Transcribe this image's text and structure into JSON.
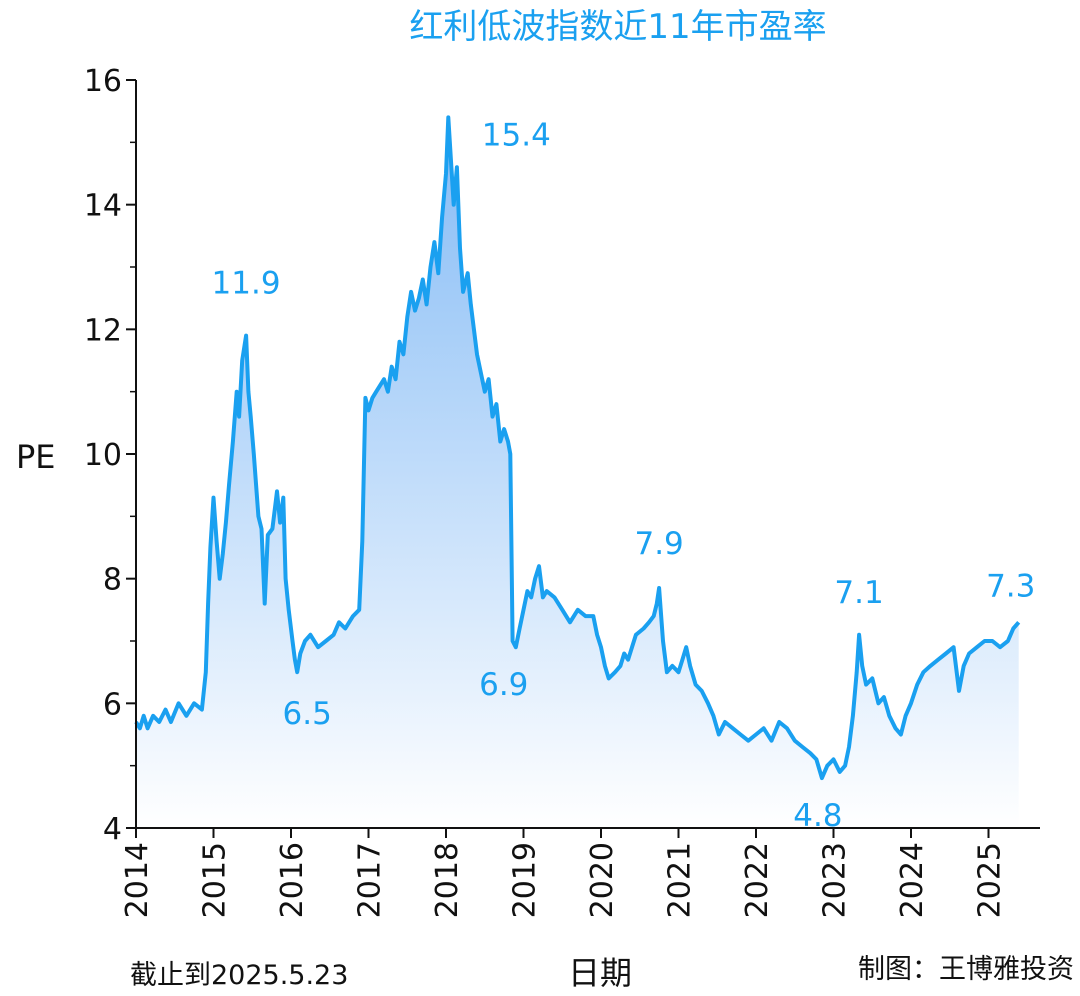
{
  "chart_data": {
    "type": "area",
    "title": "红利低波指数近11年市盈率",
    "xlabel": "日期",
    "ylabel": "PE",
    "ylim": [
      4,
      16
    ],
    "yticks": [
      "4",
      "6",
      "8",
      "10",
      "12",
      "14",
      "16"
    ],
    "xlim": [
      2014,
      2025.6
    ],
    "xticks": [
      "2014",
      "2015",
      "2016",
      "2017",
      "2018",
      "2019",
      "2020",
      "2021",
      "2022",
      "2023",
      "2024",
      "2025"
    ],
    "grid": false,
    "line_color": "#1aa0f0",
    "fill_gradient": [
      "#7fb8f5",
      "#ffffff"
    ],
    "points": [
      [
        2014.0,
        5.7
      ],
      [
        2014.05,
        5.6
      ],
      [
        2014.1,
        5.8
      ],
      [
        2014.15,
        5.6
      ],
      [
        2014.22,
        5.8
      ],
      [
        2014.3,
        5.7
      ],
      [
        2014.38,
        5.9
      ],
      [
        2014.45,
        5.7
      ],
      [
        2014.55,
        6.0
      ],
      [
        2014.65,
        5.8
      ],
      [
        2014.75,
        6.0
      ],
      [
        2014.85,
        5.9
      ],
      [
        2014.9,
        6.5
      ],
      [
        2014.93,
        7.6
      ],
      [
        2014.96,
        8.5
      ],
      [
        2015.0,
        9.3
      ],
      [
        2015.04,
        8.6
      ],
      [
        2015.08,
        8.0
      ],
      [
        2015.12,
        8.4
      ],
      [
        2015.16,
        8.9
      ],
      [
        2015.2,
        9.5
      ],
      [
        2015.25,
        10.2
      ],
      [
        2015.3,
        11.0
      ],
      [
        2015.33,
        10.6
      ],
      [
        2015.37,
        11.5
      ],
      [
        2015.42,
        11.9
      ],
      [
        2015.45,
        11.0
      ],
      [
        2015.48,
        10.6
      ],
      [
        2015.52,
        10.0
      ],
      [
        2015.55,
        9.5
      ],
      [
        2015.58,
        9.0
      ],
      [
        2015.62,
        8.8
      ],
      [
        2015.66,
        7.6
      ],
      [
        2015.7,
        8.7
      ],
      [
        2015.76,
        8.8
      ],
      [
        2015.82,
        9.4
      ],
      [
        2015.86,
        8.9
      ],
      [
        2015.9,
        9.3
      ],
      [
        2015.93,
        8.0
      ],
      [
        2015.97,
        7.5
      ],
      [
        2016.02,
        7.0
      ],
      [
        2016.05,
        6.7
      ],
      [
        2016.08,
        6.5
      ],
      [
        2016.12,
        6.8
      ],
      [
        2016.18,
        7.0
      ],
      [
        2016.25,
        7.1
      ],
      [
        2016.35,
        6.9
      ],
      [
        2016.45,
        7.0
      ],
      [
        2016.55,
        7.1
      ],
      [
        2016.62,
        7.3
      ],
      [
        2016.7,
        7.2
      ],
      [
        2016.8,
        7.4
      ],
      [
        2016.88,
        7.5
      ],
      [
        2016.92,
        8.6
      ],
      [
        2016.96,
        10.9
      ],
      [
        2017.0,
        10.7
      ],
      [
        2017.05,
        10.9
      ],
      [
        2017.1,
        11.0
      ],
      [
        2017.15,
        11.1
      ],
      [
        2017.2,
        11.2
      ],
      [
        2017.25,
        11.0
      ],
      [
        2017.3,
        11.4
      ],
      [
        2017.35,
        11.2
      ],
      [
        2017.4,
        11.8
      ],
      [
        2017.45,
        11.6
      ],
      [
        2017.5,
        12.2
      ],
      [
        2017.55,
        12.6
      ],
      [
        2017.6,
        12.3
      ],
      [
        2017.65,
        12.5
      ],
      [
        2017.7,
        12.8
      ],
      [
        2017.75,
        12.4
      ],
      [
        2017.8,
        13.0
      ],
      [
        2017.85,
        13.4
      ],
      [
        2017.9,
        12.9
      ],
      [
        2017.95,
        13.8
      ],
      [
        2018.0,
        14.5
      ],
      [
        2018.03,
        15.4
      ],
      [
        2018.06,
        14.8
      ],
      [
        2018.1,
        14.0
      ],
      [
        2018.14,
        14.6
      ],
      [
        2018.18,
        13.3
      ],
      [
        2018.22,
        12.6
      ],
      [
        2018.28,
        12.9
      ],
      [
        2018.32,
        12.4
      ],
      [
        2018.36,
        12.0
      ],
      [
        2018.4,
        11.6
      ],
      [
        2018.45,
        11.3
      ],
      [
        2018.5,
        11.0
      ],
      [
        2018.55,
        11.2
      ],
      [
        2018.6,
        10.6
      ],
      [
        2018.65,
        10.8
      ],
      [
        2018.7,
        10.2
      ],
      [
        2018.75,
        10.4
      ],
      [
        2018.8,
        10.2
      ],
      [
        2018.83,
        10.0
      ],
      [
        2018.86,
        7.0
      ],
      [
        2018.9,
        6.9
      ],
      [
        2018.95,
        7.2
      ],
      [
        2019.0,
        7.5
      ],
      [
        2019.05,
        7.8
      ],
      [
        2019.1,
        7.7
      ],
      [
        2019.15,
        8.0
      ],
      [
        2019.2,
        8.2
      ],
      [
        2019.25,
        7.7
      ],
      [
        2019.3,
        7.8
      ],
      [
        2019.4,
        7.7
      ],
      [
        2019.5,
        7.5
      ],
      [
        2019.6,
        7.3
      ],
      [
        2019.7,
        7.5
      ],
      [
        2019.8,
        7.4
      ],
      [
        2019.9,
        7.4
      ],
      [
        2019.95,
        7.1
      ],
      [
        2020.0,
        6.9
      ],
      [
        2020.05,
        6.6
      ],
      [
        2020.1,
        6.4
      ],
      [
        2020.18,
        6.5
      ],
      [
        2020.25,
        6.6
      ],
      [
        2020.3,
        6.8
      ],
      [
        2020.35,
        6.7
      ],
      [
        2020.45,
        7.1
      ],
      [
        2020.55,
        7.2
      ],
      [
        2020.62,
        7.3
      ],
      [
        2020.68,
        7.4
      ],
      [
        2020.72,
        7.6
      ],
      [
        2020.75,
        7.85
      ],
      [
        2020.8,
        7.0
      ],
      [
        2020.85,
        6.5
      ],
      [
        2020.92,
        6.6
      ],
      [
        2021.0,
        6.5
      ],
      [
        2021.05,
        6.7
      ],
      [
        2021.1,
        6.9
      ],
      [
        2021.15,
        6.6
      ],
      [
        2021.22,
        6.3
      ],
      [
        2021.3,
        6.2
      ],
      [
        2021.38,
        6.0
      ],
      [
        2021.45,
        5.8
      ],
      [
        2021.52,
        5.5
      ],
      [
        2021.6,
        5.7
      ],
      [
        2021.7,
        5.6
      ],
      [
        2021.8,
        5.5
      ],
      [
        2021.9,
        5.4
      ],
      [
        2022.0,
        5.5
      ],
      [
        2022.1,
        5.6
      ],
      [
        2022.2,
        5.4
      ],
      [
        2022.3,
        5.7
      ],
      [
        2022.4,
        5.6
      ],
      [
        2022.5,
        5.4
      ],
      [
        2022.6,
        5.3
      ],
      [
        2022.7,
        5.2
      ],
      [
        2022.78,
        5.1
      ],
      [
        2022.85,
        4.8
      ],
      [
        2022.92,
        5.0
      ],
      [
        2023.0,
        5.1
      ],
      [
        2023.08,
        4.9
      ],
      [
        2023.15,
        5.0
      ],
      [
        2023.2,
        5.3
      ],
      [
        2023.25,
        5.8
      ],
      [
        2023.3,
        6.5
      ],
      [
        2023.33,
        7.1
      ],
      [
        2023.37,
        6.6
      ],
      [
        2023.42,
        6.3
      ],
      [
        2023.5,
        6.4
      ],
      [
        2023.58,
        6.0
      ],
      [
        2023.65,
        6.1
      ],
      [
        2023.72,
        5.8
      ],
      [
        2023.8,
        5.6
      ],
      [
        2023.87,
        5.5
      ],
      [
        2023.93,
        5.8
      ],
      [
        2024.0,
        6.0
      ],
      [
        2024.08,
        6.3
      ],
      [
        2024.16,
        6.5
      ],
      [
        2024.25,
        6.6
      ],
      [
        2024.35,
        6.7
      ],
      [
        2024.45,
        6.8
      ],
      [
        2024.55,
        6.9
      ],
      [
        2024.62,
        6.2
      ],
      [
        2024.68,
        6.6
      ],
      [
        2024.75,
        6.8
      ],
      [
        2024.85,
        6.9
      ],
      [
        2024.95,
        7.0
      ],
      [
        2025.05,
        7.0
      ],
      [
        2025.15,
        6.9
      ],
      [
        2025.25,
        7.0
      ],
      [
        2025.32,
        7.2
      ],
      [
        2025.39,
        7.3
      ]
    ],
    "annotations": [
      {
        "text": "11.9",
        "x": 2015.42,
        "y": 11.9
      },
      {
        "text": "6.5",
        "x": 2016.08,
        "y": 6.5
      },
      {
        "text": "15.4",
        "x": 2018.03,
        "y": 15.4
      },
      {
        "text": "6.9",
        "x": 2018.9,
        "y": 6.9
      },
      {
        "text": "7.9",
        "x": 2020.75,
        "y": 7.85
      },
      {
        "text": "4.8",
        "x": 2022.85,
        "y": 4.8
      },
      {
        "text": "7.1",
        "x": 2023.33,
        "y": 7.1
      },
      {
        "text": "7.3",
        "x": 2025.39,
        "y": 7.3
      }
    ]
  },
  "footer": {
    "left": "截止到2025.5.23",
    "right": "制图：王博雅投资"
  }
}
